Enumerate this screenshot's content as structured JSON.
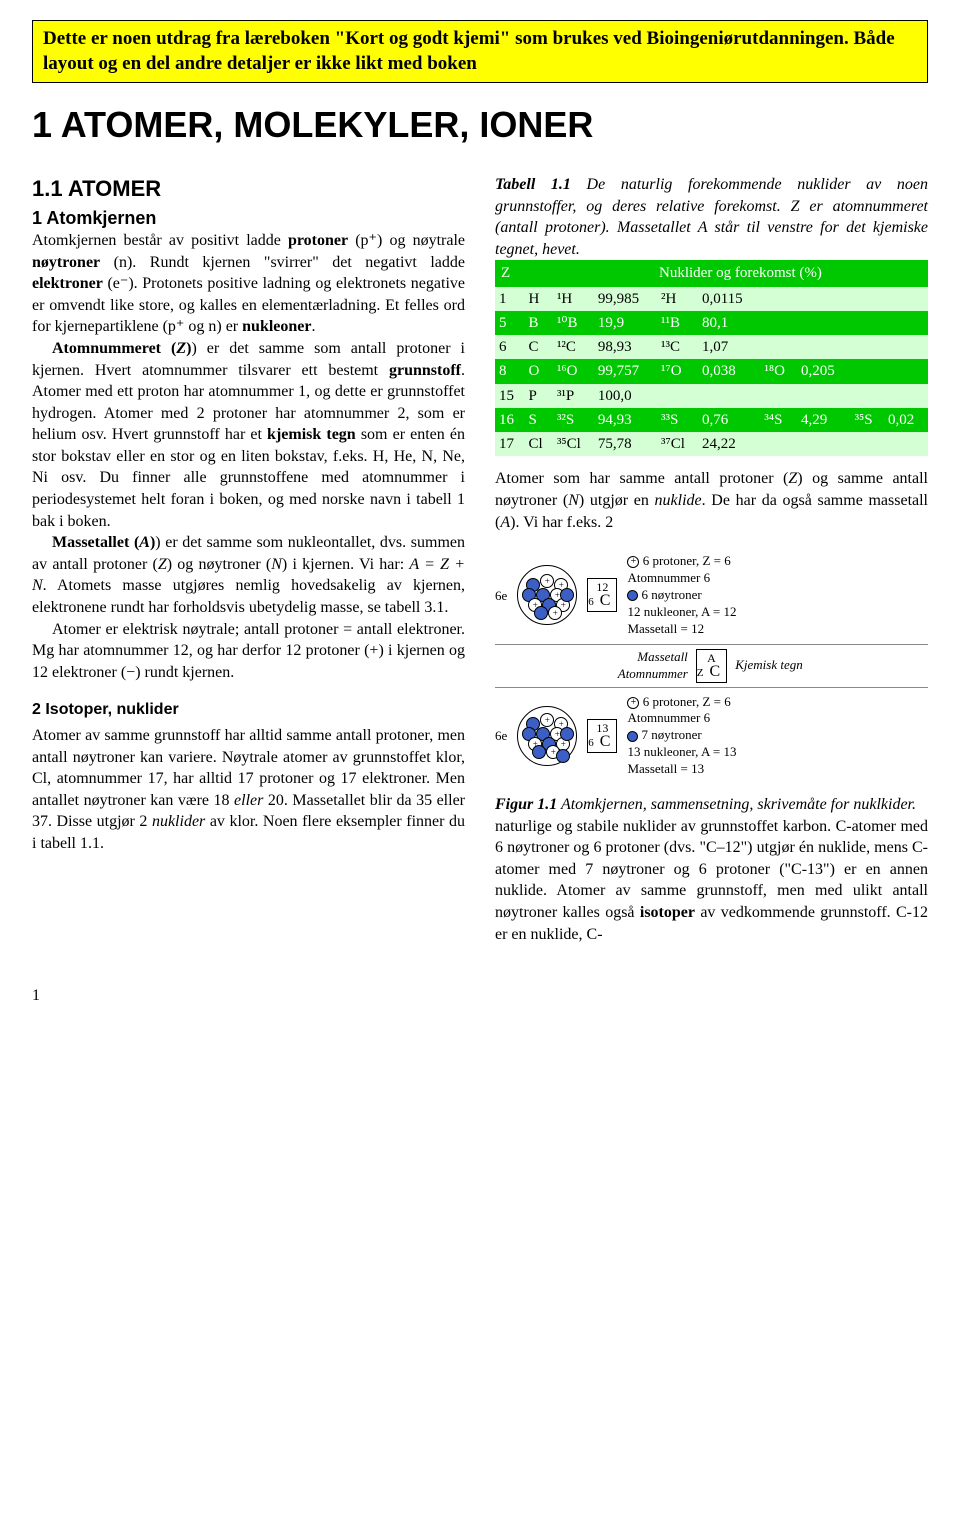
{
  "highlight": "Dette er noen utdrag fra læreboken \"Kort og godt kjemi\" som brukes ved Bioingeniørutdanningen. Både layout og en del andre detaljer er ikke likt med boken",
  "title": "1  ATOMER, MOLEKYLER, IONER",
  "left": {
    "h2": "1.1 ATOMER",
    "h3_prefix": "1",
    "h3": " Atomkjernen",
    "p1a": "Atomkjernen består av positivt ladde  ",
    "p1b": "protoner",
    "p1c": " (p⁺) og nøytrale ",
    "p1d": "nøytroner",
    "p1e": " (n). Rundt kjernen \"svirrer\" det negativt ladde ",
    "p1f": "elektroner",
    "p1g": " (e⁻). Protonets positive ladning og elektronets negative er omvendt like store, og kalles en elementærladning. Et felles ord for kjernepartiklene  (p⁺ og n) er ",
    "p1h": "nukleoner",
    "p1i": ".",
    "p2a": "Atomnummeret (",
    "p2z": "Z",
    "p2b": ") er det samme som antall protoner i kjernen. Hvert atomnummer tilsvarer ett bestemt ",
    "p2c": "grunnstoff",
    "p2d": ". Atomer med ett proton har atomnummer  1, og dette er grunnstoffet hydrogen. Atomer med 2 protoner har atomnummer  2, som er helium osv. Hvert grunnstoff har et ",
    "p2e": "kjemisk tegn",
    "p2f": " som er enten én stor bokstav eller en stor og en liten bokstav, f.eks. H, He, N, Ne, Ni osv. Du finner alle grunnstoffene med atomnummer i periodesystemet helt foran i boken, og med norske navn i tabell 1 bak i boken.",
    "p3a": "Massetallet (",
    "p3z": "A",
    "p3b": ") er det samme som nukleontallet, dvs. summen av antall protoner (",
    "p3c": "Z",
    "p3d": ") og nøytroner (",
    "p3e": "N",
    "p3f": ") i kjernen. Vi har: ",
    "p3g": "A = Z + N",
    "p3h": ". Atomets masse utgjøres nemlig hovedsakelig av kjernen, elektronene rundt har forholdsvis ubetydelig masse,  se tabell 3.1.",
    "p4": "Atomer er elektrisk nøytrale; antall protoner = antall elektroner.  Mg har  atomnummer 12, og har derfor 12 protoner (+) i kjernen og 12 elektroner (−) rundt kjernen.",
    "h4": "2  Isotoper, nuklider",
    "p5a": "Atomer av samme grunnstoff har alltid samme antall protoner, men antall nøytroner kan variere. Nøytrale atomer av grunnstoffet klor, Cl, atomnummer 17, har alltid 17 protoner og 17 elektroner. Men antallet nøytroner kan være 18 ",
    "p5b": "eller",
    "p5c": " 20. Massetallet blir da 35 eller 37. Disse utgjør 2 ",
    "p5d": "nuklider",
    "p5e": " av klor. Noen flere eksempler finner du i tabell 1.1."
  },
  "right": {
    "caption_a": "Tabell 1.1",
    "caption_b": " De naturlig forekommende nuklider av noen grunnstoffer, og deres relative forekomst. Z er atomnummeret (antall protoner). Massetallet A står til venstre for det kjemiske tegnet, hevet.",
    "th_z": "Z",
    "th_nuk": "Nuklider og forekomst (%)",
    "rows": [
      {
        "z": "1",
        "sym": "H",
        "n1": "¹H",
        "v1": "99,985",
        "n2": "²H",
        "v2": "0,0115"
      },
      {
        "z": "5",
        "sym": "B",
        "n1": "¹⁰B",
        "v1": "19,9",
        "n2": "¹¹B",
        "v2": "80,1"
      },
      {
        "z": "6",
        "sym": "C",
        "n1": "¹²C",
        "v1": "98,93",
        "n2": "¹³C",
        "v2": "1,07"
      },
      {
        "z": "8",
        "sym": "O",
        "n1": "¹⁶O",
        "v1": "99,757",
        "n2": "¹⁷O",
        "v2": "0,038",
        "n3": "¹⁸O",
        "v3": "0,205"
      },
      {
        "z": "15",
        "sym": "P",
        "n1": "³¹P",
        "v1": "100,0"
      },
      {
        "z": "16",
        "sym": "S",
        "n1": "³²S",
        "v1": "94,93",
        "n2": "³³S",
        "v2": "0,76",
        "n3": "³⁴S",
        "v3": "4,29",
        "n4": "³⁵S",
        "v4": "0,02"
      },
      {
        "z": "17",
        "sym": "Cl",
        "n1": "³⁵Cl",
        "v1": "75,78",
        "n2": "³⁷Cl",
        "v2": "24,22"
      }
    ],
    "para_a": "Atomer som har samme antall protoner (",
    "para_z": "Z",
    "para_b": ") og samme antall nøytroner (",
    "para_n": "N",
    "para_c": ") utgjør en ",
    "para_d": "nuklide",
    "para_e": ". De har da også samme massetall (",
    "para_f": "A",
    "para_g": "). Vi har f.eks. 2",
    "fig": {
      "e6": "6e",
      "c12_mass": "12",
      "c12_z": "6",
      "c12_sym": "C",
      "c12_txt1": "6 protoner, Z = 6",
      "c12_txt2": "Atomnummer 6",
      "c12_txt3": "6  nøytroner",
      "c12_txt4": "12 nukleoner, A = 12",
      "c12_txt5": "Massetall = 12",
      "mid_l1": "Massetall",
      "mid_l2": "Atomnummer",
      "mid_a": "A",
      "mid_z": "Z",
      "mid_c": "C",
      "mid_r": "Kjemisk tegn",
      "c13_mass": "13",
      "c13_z": "6",
      "c13_sym": "C",
      "c13_txt1": "6 protoner, Z = 6",
      "c13_txt2": "Atomnummer 6",
      "c13_txt3": "7  nøytroner",
      "c13_txt4": "13 nukleoner, A = 13",
      "c13_txt5": "Massetall = 13"
    },
    "figcap_a": "Figur 1.1",
    "figcap_b": " Atomkjernen, sammensetning, skrivemåte for nuklkider.",
    "p2a": "naturlige og stabile nuklider av grunnstoffet karbon. C-atomer med 6 nøytroner og 6 protoner (dvs. \"C–12\") utgjør én nuklide, mens C-atomer med 7 nøytroner og 6 protoner (\"C-13\") er en annen nuklide. Atomer av samme grunnstoff, men med ulikt antall nøytroner kalles også ",
    "p2b": "isotoper",
    "p2c": " av vedkommende grunnstoff. C-12 er en nuklide, C-"
  },
  "pagenum": "1",
  "colors": {
    "highlight_bg": "#ffff00",
    "table_header_bg": "#00c800",
    "row_odd_bg": "#d4ffd4",
    "neutron_fill": "#3b5fc4"
  }
}
